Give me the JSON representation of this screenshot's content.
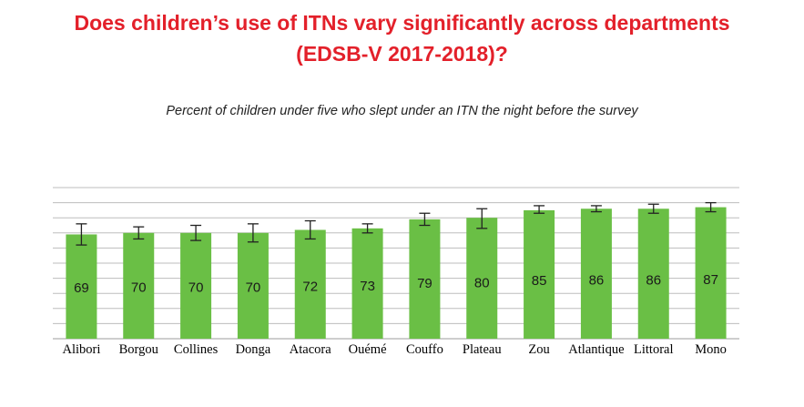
{
  "title_line1": "Does children’s use of ITNs vary significantly across departments",
  "title_line2": "(EDSB-V 2017-2018)?",
  "subtitle": "Percent of children under five who slept under an ITN the night before the survey",
  "colors": {
    "bar": "#6abf45",
    "title": "#e3202a",
    "grid": "#bdbdbd",
    "error": "#222222"
  },
  "chart_data": {
    "type": "bar",
    "title": "Does children’s use of ITNs vary significantly across departments (EDSB-V 2017-2018)?",
    "subtitle": "Percent of children under five who slept under an ITN the night before the survey",
    "xlabel": "",
    "ylabel": "",
    "ylim": [
      0,
      100
    ],
    "grid": true,
    "error_bars": true,
    "categories": [
      "Alibori",
      "Borgou",
      "Collines",
      "Donga",
      "Atacora",
      "Ouémé",
      "Couffo",
      "Plateau",
      "Zou",
      "Atlantique",
      "Littoral",
      "Mono"
    ],
    "values": [
      69,
      70,
      70,
      70,
      72,
      73,
      79,
      80,
      85,
      86,
      86,
      87
    ],
    "error_low": [
      62,
      66,
      65,
      64,
      66,
      70,
      75,
      73,
      83,
      84,
      83,
      84
    ],
    "error_high": [
      76,
      74,
      75,
      76,
      78,
      76,
      83,
      86,
      88,
      88,
      89,
      90
    ]
  }
}
